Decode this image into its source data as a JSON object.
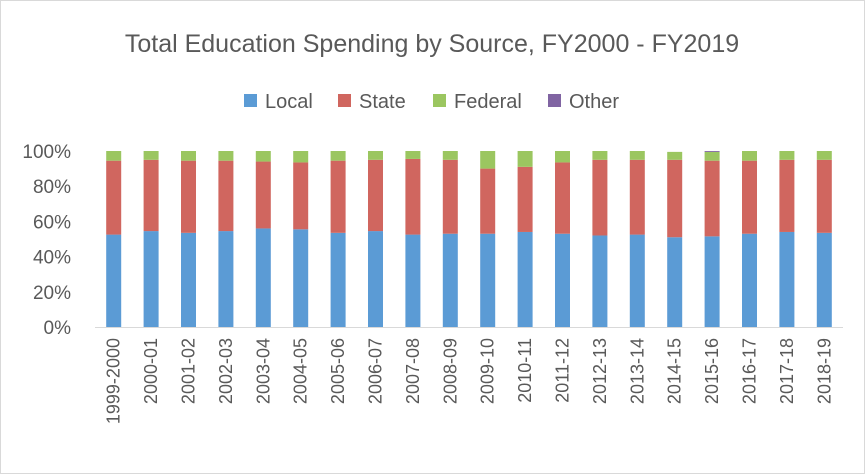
{
  "chart_data": {
    "type": "bar",
    "stacked": true,
    "percent_stacked": true,
    "title": "Total Education Spending by Source, FY2000 - FY2019",
    "legend_position": "top",
    "grid": false,
    "ylim": [
      0,
      100
    ],
    "yticks": [
      "0%",
      "20%",
      "40%",
      "60%",
      "80%",
      "100%"
    ],
    "categories": [
      "1999-2000",
      "2000-01",
      "2001-02",
      "2002-03",
      "2003-04",
      "2004-05",
      "2005-06",
      "2006-07",
      "2007-08",
      "2008-09",
      "2009-10",
      "2010-11",
      "2011-12",
      "2012-13",
      "2013-14",
      "2014-15",
      "2015-16",
      "2016-17",
      "2017-18",
      "2018-19"
    ],
    "series": [
      {
        "name": "Local",
        "color": "#5b9bd5",
        "values": [
          52.5,
          54.5,
          53.5,
          54.5,
          56.0,
          55.5,
          53.5,
          54.5,
          52.5,
          53.0,
          53.0,
          54.0,
          53.0,
          52.0,
          52.5,
          51.0,
          51.5,
          53.0,
          54.0,
          53.5
        ]
      },
      {
        "name": "State",
        "color": "#d0665f",
        "values": [
          42.0,
          40.5,
          41.0,
          40.0,
          38.0,
          38.0,
          41.0,
          40.5,
          43.0,
          42.0,
          37.0,
          37.0,
          40.5,
          43.0,
          42.5,
          44.0,
          43.0,
          41.5,
          41.0,
          41.5
        ]
      },
      {
        "name": "Federal",
        "color": "#9bc660",
        "values": [
          5.5,
          5.0,
          5.5,
          5.5,
          6.0,
          6.5,
          5.5,
          5.0,
          4.5,
          5.0,
          10.0,
          9.0,
          6.5,
          5.0,
          5.0,
          4.5,
          5.0,
          5.5,
          5.0,
          5.0
        ]
      },
      {
        "name": "Other",
        "color": "#8064a2",
        "values": [
          0,
          0,
          0,
          0,
          0,
          0,
          0,
          0,
          0,
          0,
          0,
          0,
          0,
          0,
          0,
          0,
          0.5,
          0,
          0,
          0
        ]
      }
    ]
  }
}
